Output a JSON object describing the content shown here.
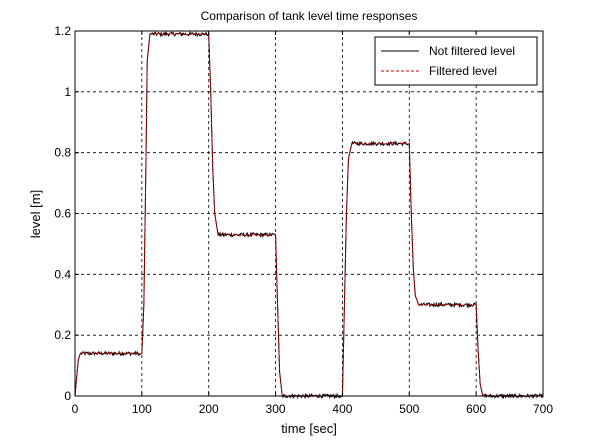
{
  "chart_data": {
    "type": "line",
    "title": "Comparison of tank level time responses",
    "xlabel": "time [sec]",
    "ylabel": "level [m]",
    "xlim": [
      0,
      700
    ],
    "ylim": [
      0,
      1.2
    ],
    "xticks": [
      0,
      100,
      200,
      300,
      400,
      500,
      600,
      700
    ],
    "yticks": [
      0,
      0.2,
      0.4,
      0.6,
      0.8,
      1,
      1.2
    ],
    "xtick_labels": [
      "0",
      "100",
      "200",
      "300",
      "400",
      "500",
      "600",
      "700"
    ],
    "ytick_labels": [
      "0",
      "0.2",
      "0.4",
      "0.6",
      "0.8",
      "1",
      "1.2"
    ],
    "grid": true,
    "legend_position": "top-right",
    "series": [
      {
        "name": "Not filtered level",
        "color": "#000000",
        "style": "solid",
        "x": [
          0,
          2,
          5,
          8,
          95,
          100,
          103,
          106,
          108,
          112,
          198,
          200,
          203,
          206,
          209,
          214,
          298,
          300,
          303,
          306,
          310,
          395,
          400,
          403,
          406,
          409,
          414,
          497,
          500,
          503,
          506,
          509,
          514,
          597,
          600,
          603,
          606,
          610,
          700
        ],
        "y": [
          0.0,
          0.05,
          0.12,
          0.14,
          0.14,
          0.14,
          0.3,
          0.75,
          1.1,
          1.19,
          1.19,
          1.19,
          1.0,
          0.75,
          0.6,
          0.53,
          0.53,
          0.53,
          0.3,
          0.08,
          0.0,
          0.0,
          0.0,
          0.3,
          0.6,
          0.78,
          0.83,
          0.83,
          0.83,
          0.6,
          0.42,
          0.33,
          0.3,
          0.3,
          0.3,
          0.15,
          0.04,
          0.0,
          0.0
        ]
      },
      {
        "name": "Filtered level",
        "color": "#cc0000",
        "style": "dashed",
        "x": [
          0,
          2,
          5,
          8,
          95,
          100,
          103,
          106,
          108,
          112,
          198,
          200,
          203,
          206,
          209,
          214,
          298,
          300,
          303,
          306,
          310,
          395,
          400,
          403,
          406,
          409,
          414,
          497,
          500,
          503,
          506,
          509,
          514,
          597,
          600,
          603,
          606,
          610,
          700
        ],
        "y": [
          0.0,
          0.05,
          0.12,
          0.14,
          0.14,
          0.14,
          0.3,
          0.75,
          1.1,
          1.19,
          1.19,
          1.19,
          1.0,
          0.75,
          0.6,
          0.53,
          0.53,
          0.53,
          0.3,
          0.08,
          0.0,
          0.0,
          0.0,
          0.3,
          0.6,
          0.78,
          0.83,
          0.83,
          0.83,
          0.6,
          0.42,
          0.33,
          0.3,
          0.3,
          0.3,
          0.15,
          0.04,
          0.0,
          0.0
        ]
      }
    ]
  }
}
